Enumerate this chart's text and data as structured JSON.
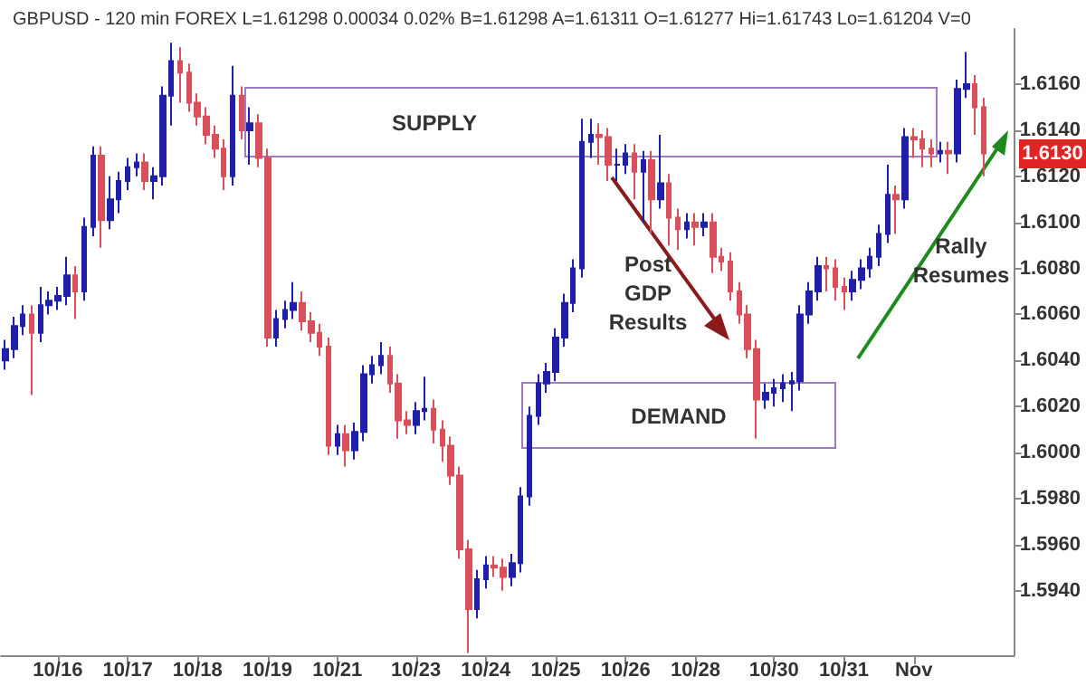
{
  "chart_data": {
    "type": "candlestick",
    "title": "GBPUSD - 120 min FOREX L=1.61298 0.00034 0.02% B=1.61298 A=1.61311 O=1.61277 Hi=1.61743 Lo=1.61204 V=0",
    "categories": [
      null,
      null,
      null,
      null,
      null,
      null,
      "10/16",
      null,
      null,
      null,
      null,
      null,
      null,
      null,
      "10/17",
      null,
      null,
      null,
      null,
      null,
      null,
      null,
      "10/18",
      null,
      null,
      null,
      null,
      null,
      null,
      null,
      "10/19",
      null,
      null,
      null,
      null,
      null,
      null,
      null,
      "10/21",
      null,
      null,
      null,
      null,
      null,
      null,
      null,
      null,
      "10/23",
      null,
      null,
      null,
      null,
      null,
      null,
      null,
      "10/24",
      null,
      null,
      null,
      null,
      null,
      null,
      null,
      "10/25",
      null,
      null,
      null,
      null,
      null,
      null,
      null,
      "10/26",
      null,
      null,
      null,
      null,
      null,
      null,
      null,
      "10/28",
      null,
      null,
      null,
      null,
      null,
      null,
      null,
      null,
      "10/30",
      null,
      null,
      null,
      null,
      null,
      null,
      null,
      "10/31",
      null,
      null,
      null,
      null,
      null,
      null,
      null,
      "Nov",
      null,
      null,
      null,
      null,
      null,
      null,
      null,
      null
    ],
    "ohlc": [
      [
        1.604,
        1.6049,
        1.6036,
        1.6045
      ],
      [
        1.6045,
        1.6059,
        1.6041,
        1.6055
      ],
      [
        1.6055,
        1.6064,
        1.6051,
        1.606
      ],
      [
        1.606,
        1.6064,
        1.6025,
        1.6052
      ],
      [
        1.6052,
        1.6072,
        1.6048,
        1.6064
      ],
      [
        1.6064,
        1.607,
        1.606,
        1.6066
      ],
      [
        1.6066,
        1.6072,
        1.6062,
        1.6068
      ],
      [
        1.6068,
        1.6085,
        1.6064,
        1.6077
      ],
      [
        1.6077,
        1.6081,
        1.6058,
        1.607
      ],
      [
        1.607,
        1.6102,
        1.6066,
        1.6098
      ],
      [
        1.6098,
        1.6133,
        1.6094,
        1.6129
      ],
      [
        1.6129,
        1.6133,
        1.6089,
        1.6101
      ],
      [
        1.6101,
        1.612,
        1.6097,
        1.611
      ],
      [
        1.611,
        1.6122,
        1.6104,
        1.6118
      ],
      [
        1.6118,
        1.6128,
        1.6114,
        1.6124
      ],
      [
        1.6124,
        1.613,
        1.612,
        1.6126
      ],
      [
        1.6126,
        1.613,
        1.6114,
        1.6118
      ],
      [
        1.6118,
        1.6124,
        1.611,
        1.612
      ],
      [
        1.612,
        1.6159,
        1.6116,
        1.6155
      ],
      [
        1.6155,
        1.6178,
        1.6142,
        1.617
      ],
      [
        1.617,
        1.6176,
        1.6152,
        1.6165
      ],
      [
        1.6165,
        1.6169,
        1.6148,
        1.6152
      ],
      [
        1.6152,
        1.6156,
        1.6142,
        1.6146
      ],
      [
        1.6146,
        1.615,
        1.6134,
        1.6138
      ],
      [
        1.6138,
        1.6142,
        1.6128,
        1.6132
      ],
      [
        1.6132,
        1.6136,
        1.6114,
        1.612
      ],
      [
        1.612,
        1.6168,
        1.6116,
        1.6155
      ],
      [
        1.6155,
        1.6159,
        1.6136,
        1.614
      ],
      [
        1.614,
        1.615,
        1.6125,
        1.6143
      ],
      [
        1.6143,
        1.6147,
        1.6124,
        1.6128
      ],
      [
        1.6128,
        1.6132,
        1.6046,
        1.605
      ],
      [
        1.605,
        1.6062,
        1.6046,
        1.6058
      ],
      [
        1.6058,
        1.6066,
        1.6054,
        1.6062
      ],
      [
        1.6062,
        1.6074,
        1.6058,
        1.6065
      ],
      [
        1.6065,
        1.607,
        1.6053,
        1.6057
      ],
      [
        1.6057,
        1.6061,
        1.6048,
        1.6052
      ],
      [
        1.6052,
        1.6056,
        1.6042,
        1.6046
      ],
      [
        1.6046,
        1.605,
        1.5999,
        1.6003
      ],
      [
        1.6003,
        1.6012,
        1.5999,
        1.6008
      ],
      [
        1.6008,
        1.6012,
        1.5994,
        1.6001
      ],
      [
        1.6001,
        1.6013,
        1.5997,
        1.6009
      ],
      [
        1.6009,
        1.6038,
        1.6005,
        1.6034
      ],
      [
        1.6034,
        1.6042,
        1.603,
        1.6038
      ],
      [
        1.6038,
        1.6048,
        1.6034,
        1.6042
      ],
      [
        1.6042,
        1.6046,
        1.6026,
        1.603
      ],
      [
        1.603,
        1.6034,
        1.6006,
        1.6014
      ],
      [
        1.6014,
        1.6018,
        1.6008,
        1.6012
      ],
      [
        1.6012,
        1.6022,
        1.6008,
        1.6018
      ],
      [
        1.6018,
        1.6033,
        1.6014,
        1.6019
      ],
      [
        1.6019,
        1.6023,
        1.6004,
        1.601
      ],
      [
        1.601,
        1.6014,
        1.5996,
        1.6003
      ],
      [
        1.6003,
        1.6007,
        1.5986,
        1.599
      ],
      [
        1.599,
        1.5994,
        1.5954,
        1.5958
      ],
      [
        1.5958,
        1.5962,
        1.5913,
        1.5932
      ],
      [
        1.5932,
        1.5949,
        1.5928,
        1.5945
      ],
      [
        1.5945,
        1.5955,
        1.5941,
        1.5951
      ],
      [
        1.5951,
        1.5955,
        1.5946,
        1.595
      ],
      [
        1.595,
        1.5954,
        1.594,
        1.5946
      ],
      [
        1.5946,
        1.5956,
        1.5942,
        1.5952
      ],
      [
        1.5952,
        1.5985,
        1.5948,
        1.5981
      ],
      [
        1.5981,
        1.602,
        1.5977,
        1.6016
      ],
      [
        1.6016,
        1.6034,
        1.6012,
        1.603
      ],
      [
        1.603,
        1.6039,
        1.6026,
        1.6035
      ],
      [
        1.6035,
        1.6054,
        1.6031,
        1.605
      ],
      [
        1.605,
        1.6069,
        1.6046,
        1.6065
      ],
      [
        1.6065,
        1.6084,
        1.6061,
        1.608
      ],
      [
        1.608,
        1.6145,
        1.6076,
        1.6135
      ],
      [
        1.6135,
        1.6145,
        1.6128,
        1.6138
      ],
      [
        1.6138,
        1.6143,
        1.6125,
        1.6137
      ],
      [
        1.6137,
        1.6141,
        1.6118,
        1.6125
      ],
      [
        1.6125,
        1.6132,
        1.6118,
        1.6125
      ],
      [
        1.6125,
        1.6134,
        1.6121,
        1.613
      ],
      [
        1.613,
        1.6134,
        1.611,
        1.6122
      ],
      [
        1.6122,
        1.6131,
        1.61,
        1.6127
      ],
      [
        1.6127,
        1.6131,
        1.6095,
        1.611
      ],
      [
        1.611,
        1.6138,
        1.6106,
        1.6117
      ],
      [
        1.6117,
        1.6121,
        1.609,
        1.6102
      ],
      [
        1.6102,
        1.6106,
        1.6088,
        1.6097
      ],
      [
        1.6097,
        1.6104,
        1.6093,
        1.61
      ],
      [
        1.61,
        1.6104,
        1.609,
        1.6098
      ],
      [
        1.6098,
        1.6104,
        1.6094,
        1.61
      ],
      [
        1.61,
        1.6104,
        1.6078,
        1.6085
      ],
      [
        1.6085,
        1.6089,
        1.6079,
        1.6083
      ],
      [
        1.6083,
        1.6087,
        1.6066,
        1.607
      ],
      [
        1.607,
        1.6074,
        1.6056,
        1.606
      ],
      [
        1.606,
        1.6064,
        1.6041,
        1.6045
      ],
      [
        1.6045,
        1.6049,
        1.6006,
        1.6023
      ],
      [
        1.6023,
        1.603,
        1.6019,
        1.6026
      ],
      [
        1.6026,
        1.6032,
        1.602,
        1.6028
      ],
      [
        1.6028,
        1.6034,
        1.6022,
        1.603
      ],
      [
        1.603,
        1.6035,
        1.6018,
        1.6031
      ],
      [
        1.6031,
        1.6064,
        1.6027,
        1.606
      ],
      [
        1.606,
        1.6074,
        1.6056,
        1.607
      ],
      [
        1.607,
        1.6085,
        1.6066,
        1.6081
      ],
      [
        1.6081,
        1.6085,
        1.607,
        1.608
      ],
      [
        1.608,
        1.6084,
        1.6066,
        1.6072
      ],
      [
        1.6072,
        1.6076,
        1.6062,
        1.607
      ],
      [
        1.607,
        1.6079,
        1.6066,
        1.6075
      ],
      [
        1.6075,
        1.6084,
        1.6071,
        1.608
      ],
      [
        1.608,
        1.6089,
        1.6076,
        1.6085
      ],
      [
        1.6085,
        1.6099,
        1.6081,
        1.6095
      ],
      [
        1.6095,
        1.6125,
        1.6091,
        1.6112
      ],
      [
        1.6112,
        1.6116,
        1.6095,
        1.611
      ],
      [
        1.611,
        1.6141,
        1.6106,
        1.6137
      ],
      [
        1.6137,
        1.6141,
        1.6128,
        1.6136
      ],
      [
        1.6136,
        1.614,
        1.6124,
        1.6132
      ],
      [
        1.6132,
        1.6136,
        1.6124,
        1.613
      ],
      [
        1.613,
        1.6135,
        1.6126,
        1.6131
      ],
      [
        1.6131,
        1.6135,
        1.6121,
        1.613
      ],
      [
        1.613,
        1.6162,
        1.6126,
        1.6158
      ],
      [
        1.6158,
        1.6174,
        1.6154,
        1.616
      ],
      [
        1.616,
        1.6164,
        1.6138,
        1.615
      ],
      [
        1.615,
        1.6154,
        1.612,
        1.613
      ]
    ],
    "ylim": [
      1.5912,
      1.6184
    ],
    "yticks": [
      {
        "value": 1.594,
        "label": "1.5940"
      },
      {
        "value": 1.596,
        "label": "1.5960"
      },
      {
        "value": 1.598,
        "label": "1.5980"
      },
      {
        "value": 1.6,
        "label": "1.6000"
      },
      {
        "value": 1.602,
        "label": "1.6020"
      },
      {
        "value": 1.604,
        "label": "1.6040"
      },
      {
        "value": 1.606,
        "label": "1.6060"
      },
      {
        "value": 1.608,
        "label": "1.6080"
      },
      {
        "value": 1.61,
        "label": "1.6100"
      },
      {
        "value": 1.612,
        "label": "1.6120"
      },
      {
        "value": 1.614,
        "label": "1.6140"
      },
      {
        "value": 1.616,
        "label": "1.6160"
      }
    ],
    "annotations": [
      "Post GDP Results",
      "Rally Resumes",
      "SUPPLY",
      "DEMAND",
      "1.6130"
    ]
  }
}
